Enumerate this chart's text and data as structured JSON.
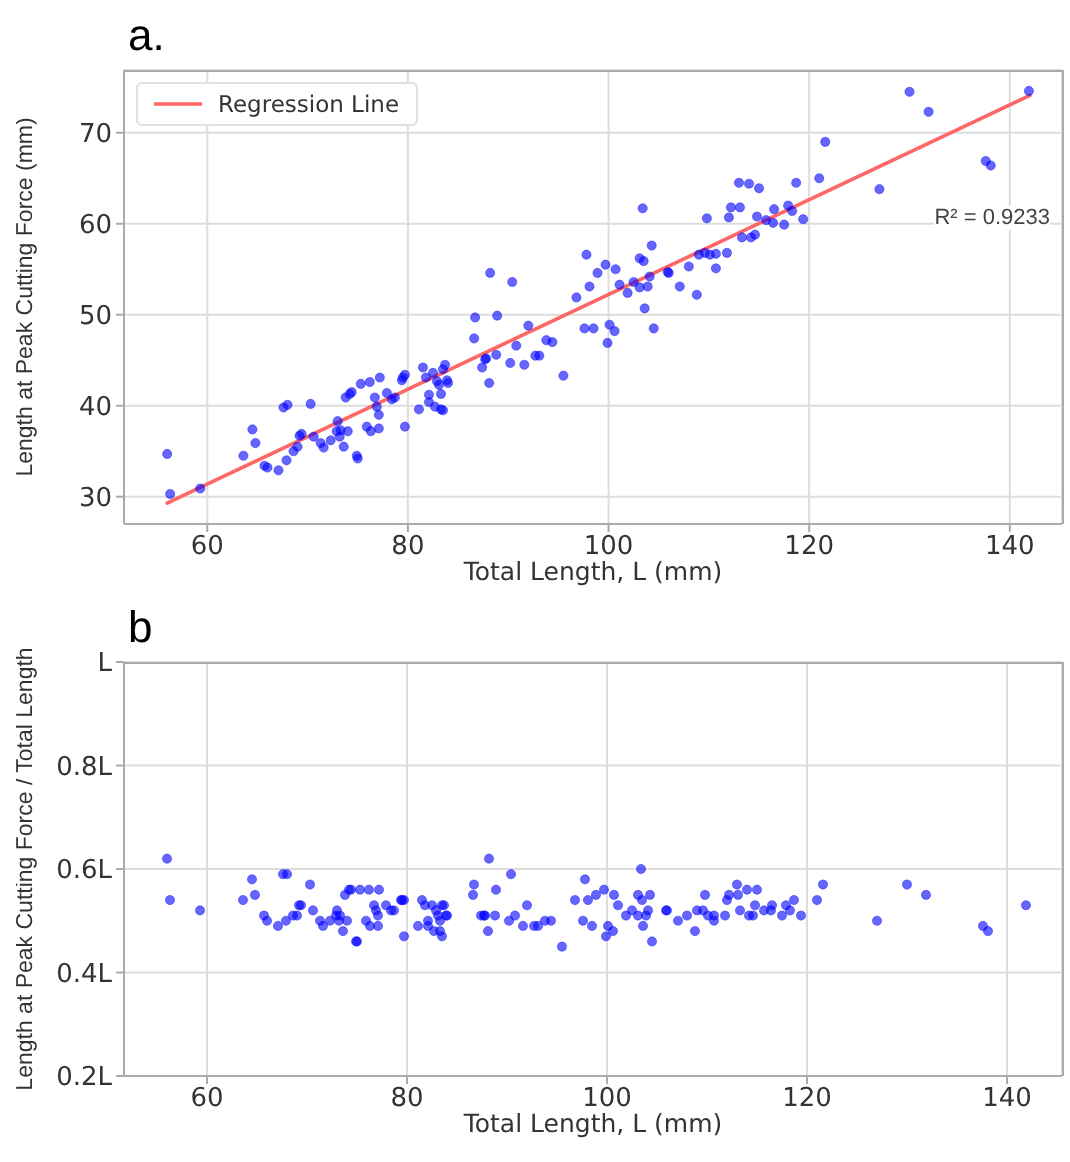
{
  "chart_data": [
    {
      "type": "scatter",
      "title": "a.",
      "xlabel": "Total Length, L (mm)",
      "ylabel": "Length at Peak Cutting Force (mm)",
      "xlim": [
        51.7,
        145.2
      ],
      "ylim": [
        27,
        76.9
      ],
      "xticks": [
        60,
        80,
        100,
        120,
        140
      ],
      "yticks": [
        30,
        40,
        50,
        60,
        70
      ],
      "grid": true,
      "legend": "top left",
      "annotations": [
        "R² = 0.9233"
      ],
      "series": [
        {
          "marker": "circle",
          "color": "#0000ff",
          "x": [
            56.0,
            56.3,
            59.3,
            63.6,
            64.5,
            64.8,
            65.7,
            66.0,
            67.1,
            67.6,
            68.0,
            67.9,
            68.6,
            69.0,
            69.2,
            69.4,
            70.3,
            70.6,
            71.3,
            71.6,
            72.3,
            72.9,
            73.0,
            73.2,
            73.3,
            73.6,
            73.8,
            74.2,
            74.4,
            74.0,
            74.9,
            75.0,
            75.3,
            76.2,
            75.9,
            76.3,
            76.7,
            76.9,
            77.1,
            77.1,
            77.2,
            77.9,
            78.4,
            78.7,
            79.4,
            79.5,
            79.7,
            79.7,
            81.1,
            81.5,
            81.8,
            82.1,
            82.1,
            82.5,
            82.7,
            82.9,
            83.1,
            83.3,
            83.3,
            83.5,
            83.5,
            83.7,
            83.9,
            84.0,
            86.7,
            86.6,
            87.4,
            87.7,
            87.8,
            88.1,
            88.2,
            88.8,
            88.9,
            90.2,
            90.4,
            90.8,
            91.6,
            92.0,
            92.7,
            93.1,
            93.8,
            94.4,
            95.5,
            96.8,
            97.6,
            97.8,
            98.1,
            98.5,
            98.9,
            99.7,
            99.9,
            100.1,
            100.6,
            100.7,
            101.1,
            101.9,
            102.5,
            103.1,
            103.1,
            103.4,
            103.5,
            103.6,
            103.9,
            104.1,
            104.3,
            104.5,
            105.9,
            106.0,
            107.1,
            108.0,
            108.8,
            109.0,
            109.6,
            109.8,
            110.1,
            110.7,
            110.7,
            111.8,
            112.0,
            112.2,
            113.0,
            113.1,
            113.3,
            114.0,
            114.2,
            114.6,
            115.0,
            114.8,
            115.7,
            116.4,
            116.5,
            117.5,
            117.9,
            118.3,
            118.7,
            119.4,
            121.0,
            121.6,
            127.0,
            130.0,
            131.9,
            137.6,
            138.1,
            141.9
          ],
          "values": [
            34.7,
            30.3,
            30.9,
            34.5,
            37.4,
            35.9,
            33.4,
            33.2,
            32.9,
            39.8,
            40.1,
            34.0,
            35.0,
            35.5,
            36.7,
            36.9,
            40.2,
            36.6,
            35.9,
            35.4,
            36.2,
            37.2,
            38.3,
            36.6,
            37.3,
            35.5,
            40.9,
            41.3,
            41.5,
            37.2,
            34.5,
            34.2,
            42.4,
            42.6,
            37.7,
            37.2,
            40.9,
            39.9,
            39.0,
            37.5,
            43.1,
            41.4,
            40.7,
            40.9,
            42.8,
            43.1,
            43.4,
            37.7,
            39.6,
            44.2,
            43.1,
            41.2,
            40.4,
            43.6,
            39.9,
            42.7,
            42.3,
            41.3,
            39.6,
            39.5,
            44.0,
            44.5,
            42.8,
            42.5,
            49.7,
            47.4,
            44.2,
            45.1,
            45.2,
            42.5,
            54.6,
            45.6,
            49.9,
            44.7,
            53.6,
            46.6,
            44.5,
            48.8,
            45.5,
            45.5,
            47.2,
            47.0,
            43.3,
            51.9,
            48.5,
            56.6,
            53.1,
            48.5,
            54.6,
            55.5,
            46.9,
            48.9,
            48.2,
            55.0,
            53.3,
            52.4,
            53.6,
            56.2,
            53.0,
            61.7,
            55.9,
            50.7,
            53.1,
            54.2,
            57.6,
            48.5,
            54.7,
            54.6,
            53.1,
            55.3,
            52.2,
            56.6,
            56.8,
            60.6,
            56.6,
            56.7,
            55.1,
            56.8,
            60.7,
            61.8,
            64.5,
            61.8,
            58.5,
            64.4,
            58.5,
            58.8,
            63.9,
            60.8,
            60.4,
            60.1,
            61.6,
            59.9,
            62.0,
            61.4,
            64.5,
            60.5,
            65.0,
            69.0,
            63.8,
            74.5,
            72.3,
            66.9,
            66.4,
            74.6
          ]
        },
        {
          "type": "line",
          "name": "Regression Line",
          "color": "#ff6666",
          "line_style": "solid",
          "x": [
            56,
            142
          ],
          "values": [
            29.3,
            74.1
          ]
        }
      ]
    },
    {
      "type": "scatter",
      "title": "b",
      "xlabel": "Total Length, L (mm)",
      "ylabel": "Length at Peak Cutting Force / Total Length",
      "xlim": [
        51.7,
        145.5
      ],
      "ylim": [
        0.2,
        1
      ],
      "xticks": [
        60,
        80,
        100,
        120,
        140
      ],
      "yticks": [
        {
          "value": 0.2,
          "label": "0.2L"
        },
        {
          "value": 0.4,
          "label": "0.4L"
        },
        {
          "value": 0.6,
          "label": "0.6L"
        },
        {
          "value": 0.8,
          "label": "0.8L"
        },
        {
          "value": 1,
          "label": "L"
        }
      ],
      "grid": true,
      "marker": "circle",
      "series": [
        {
          "color": "#0000ff",
          "x": [
            56.0,
            56.3,
            59.3,
            63.6,
            64.5,
            64.8,
            65.7,
            66.0,
            67.1,
            67.6,
            68.0,
            67.9,
            68.6,
            69.0,
            69.2,
            69.4,
            70.3,
            70.6,
            71.3,
            71.6,
            72.3,
            72.9,
            73.0,
            73.2,
            73.3,
            73.6,
            73.8,
            74.2,
            74.4,
            74.0,
            74.9,
            75.0,
            75.3,
            76.2,
            75.9,
            76.3,
            76.7,
            76.9,
            77.1,
            77.1,
            77.2,
            77.9,
            78.4,
            78.7,
            79.4,
            79.5,
            79.7,
            79.7,
            81.1,
            81.5,
            81.8,
            82.1,
            82.1,
            82.5,
            82.7,
            82.9,
            83.1,
            83.3,
            83.3,
            83.5,
            83.5,
            83.7,
            83.9,
            84.0,
            86.7,
            86.6,
            87.4,
            87.7,
            87.8,
            88.1,
            88.2,
            88.8,
            88.9,
            90.2,
            90.4,
            90.8,
            91.6,
            92.0,
            92.7,
            93.1,
            93.8,
            94.4,
            95.5,
            96.8,
            97.6,
            97.8,
            98.1,
            98.5,
            98.9,
            99.7,
            99.9,
            100.1,
            100.6,
            100.7,
            101.1,
            101.9,
            102.5,
            103.1,
            103.1,
            103.4,
            103.5,
            103.6,
            103.9,
            104.1,
            104.3,
            104.5,
            105.9,
            106.0,
            107.1,
            108.0,
            108.8,
            109.0,
            109.6,
            109.8,
            110.1,
            110.7,
            110.7,
            111.8,
            112.0,
            112.2,
            113.0,
            113.1,
            113.3,
            114.0,
            114.2,
            114.6,
            115.0,
            114.8,
            115.7,
            116.4,
            116.5,
            117.5,
            117.9,
            118.3,
            118.7,
            119.4,
            121.0,
            121.6,
            127.0,
            130.0,
            131.9,
            137.6,
            138.1,
            141.9
          ],
          "values": [
            0.62,
            0.54,
            0.52,
            0.54,
            0.58,
            0.55,
            0.51,
            0.5,
            0.49,
            0.59,
            0.59,
            0.5,
            0.51,
            0.51,
            0.53,
            0.53,
            0.57,
            0.52,
            0.5,
            0.49,
            0.5,
            0.51,
            0.52,
            0.5,
            0.51,
            0.48,
            0.55,
            0.56,
            0.56,
            0.5,
            0.46,
            0.46,
            0.56,
            0.56,
            0.5,
            0.49,
            0.53,
            0.52,
            0.51,
            0.49,
            0.56,
            0.53,
            0.52,
            0.52,
            0.54,
            0.54,
            0.54,
            0.47,
            0.49,
            0.54,
            0.53,
            0.5,
            0.49,
            0.53,
            0.48,
            0.52,
            0.51,
            0.5,
            0.48,
            0.47,
            0.53,
            0.53,
            0.51,
            0.51,
            0.57,
            0.55,
            0.51,
            0.51,
            0.51,
            0.48,
            0.62,
            0.51,
            0.56,
            0.5,
            0.59,
            0.51,
            0.49,
            0.53,
            0.49,
            0.49,
            0.5,
            0.5,
            0.45,
            0.54,
            0.5,
            0.58,
            0.54,
            0.49,
            0.55,
            0.56,
            0.47,
            0.49,
            0.48,
            0.55,
            0.53,
            0.51,
            0.52,
            0.55,
            0.51,
            0.6,
            0.54,
            0.49,
            0.51,
            0.52,
            0.55,
            0.46,
            0.52,
            0.52,
            0.5,
            0.51,
            0.48,
            0.52,
            0.52,
            0.55,
            0.51,
            0.51,
            0.5,
            0.51,
            0.54,
            0.55,
            0.57,
            0.55,
            0.52,
            0.56,
            0.51,
            0.51,
            0.56,
            0.53,
            0.52,
            0.52,
            0.53,
            0.51,
            0.53,
            0.52,
            0.54,
            0.51,
            0.54,
            0.57,
            0.5,
            0.57,
            0.55,
            0.49,
            0.48,
            0.53
          ]
        }
      ]
    }
  ]
}
